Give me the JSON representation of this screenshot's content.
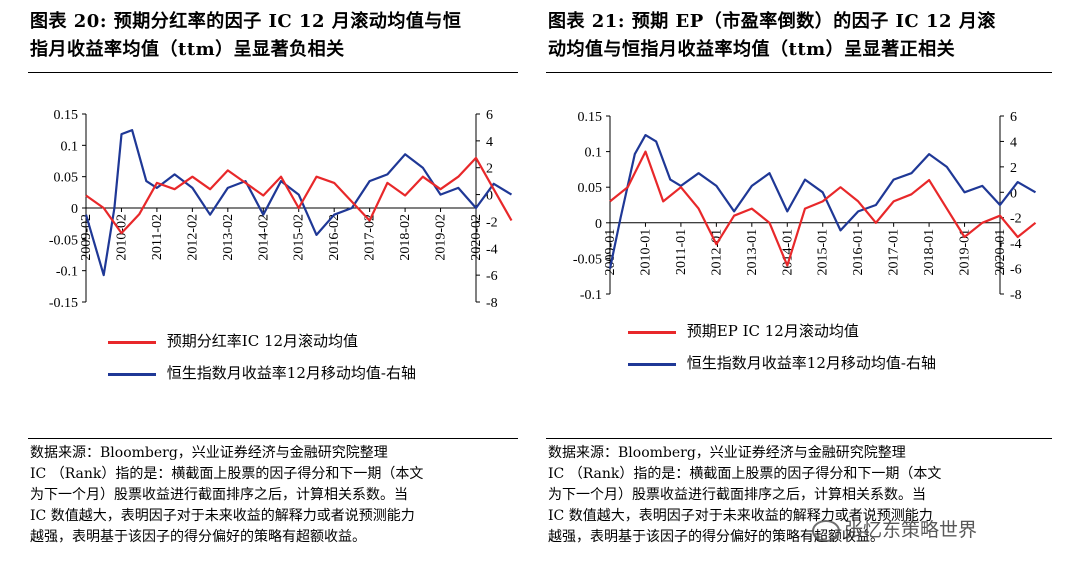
{
  "left": {
    "title_line1": "图表 20: 预期分红率的因子 IC 12 月滚动均值与恒",
    "title_line2": "指月收益率均值（ttm）呈显著负相关",
    "legend": [
      "预期分红率IC 12月滚动均值",
      "恒生指数月收益率12月移动均值-右轴"
    ],
    "source": "数据来源：Bloomberg，兴业证券经济与金融研究院整理",
    "notes": [
      "IC （Rank）指的是：横截面上股票的因子得分和下一期（本文",
      "为下一个月）股票收益进行截面排序之后，计算相关系数。当",
      "IC 数值越大，表明因子对于未来收益的解释力或者说预测能力",
      "越强，表明基于该因子的得分偏好的策略有超额收益。"
    ]
  },
  "right": {
    "title_line1": "图表 21: 预期 EP（市盈率倒数）的因子 IC 12 月滚",
    "title_line2": "动均值与恒指月收益率均值（ttm）呈显著正相关",
    "legend": [
      "预期EP IC 12月滚动均值",
      "恒生指数月收益率12月移动均值-右轴"
    ],
    "source": "数据来源：Bloomberg，兴业证券经济与金融研究院整理",
    "notes": [
      "IC （Rank）指的是：横截面上股票的因子得分和下一期（本文",
      "为下一个月）股票收益进行截面排序之后，计算相关系数。当",
      "IC 数值越大，表明因子对于未来收益的解释力或者说预测能力",
      "越强，表明基于该因子的得分偏好的策略有超额收益。"
    ]
  },
  "watermark": "张忆东策略世界",
  "colors": {
    "ic": "#e8282a",
    "hsi": "#1f3896"
  },
  "chart_data": [
    {
      "type": "line",
      "y_left": {
        "min": -0.15,
        "max": 0.15,
        "ticks": [
          "0.15",
          "0.1",
          "0.05",
          "0",
          "-0.05",
          "-0.1",
          "-0.15"
        ]
      },
      "y_right": {
        "min": -8,
        "max": 6,
        "ticks": [
          "6",
          "4",
          "2",
          "0",
          "-2",
          "-4",
          "-6",
          "-8"
        ]
      },
      "x_ticks": [
        "2009-02",
        "2010-02",
        "2011-02",
        "2012-02",
        "2013-02",
        "2014-02",
        "2015-02",
        "2016-02",
        "2017-02",
        "2018-02",
        "2019-02",
        "2020-02"
      ],
      "series": [
        {
          "name": "预期分红率IC 12月滚动均值",
          "axis": "left",
          "x": [
            0,
            0.5,
            1,
            1.5,
            2,
            2.5,
            3,
            3.5,
            4,
            4.5,
            5,
            5.5,
            6,
            6.5,
            7,
            7.5,
            8,
            8.5,
            9,
            9.5,
            10,
            10.5,
            11,
            11.5,
            12
          ],
          "values": [
            0.02,
            0.0,
            -0.04,
            -0.01,
            0.04,
            0.03,
            0.05,
            0.03,
            0.06,
            0.04,
            0.02,
            0.05,
            0.0,
            0.05,
            0.04,
            0.01,
            -0.02,
            0.04,
            0.02,
            0.05,
            0.03,
            0.05,
            0.08,
            0.03,
            -0.02
          ]
        },
        {
          "name": "恒生指数月收益率12月移动均值-右轴",
          "axis": "right",
          "x": [
            0,
            0.5,
            0.8,
            1,
            1.3,
            1.7,
            2,
            2.5,
            3,
            3.5,
            4,
            4.5,
            5,
            5.5,
            6,
            6.5,
            7,
            7.5,
            8,
            8.5,
            9,
            9.5,
            10,
            10.5,
            11,
            11.5,
            12
          ],
          "values": [
            -1.5,
            -6,
            -1,
            4.5,
            4.8,
            1,
            0.5,
            1.5,
            0.5,
            -1.5,
            0.5,
            1,
            -1.5,
            1,
            0,
            -3,
            -1.5,
            -1,
            1,
            1.5,
            3,
            2,
            0,
            0.5,
            -1,
            0.8,
            0
          ]
        }
      ]
    },
    {
      "type": "line",
      "y_left": {
        "min": -0.1,
        "max": 0.15,
        "ticks": [
          "0.15",
          "0.1",
          "0.05",
          "0",
          "-0.05",
          "-0.1"
        ]
      },
      "y_right": {
        "min": -8,
        "max": 6,
        "ticks": [
          "6",
          "4",
          "2",
          "0",
          "-2",
          "-4",
          "-6",
          "-8"
        ]
      },
      "x_ticks": [
        "2009-01",
        "2010-01",
        "2011-01",
        "2012-01",
        "2013-01",
        "2014-01",
        "2015-01",
        "2016-01",
        "2017-01",
        "2018-01",
        "2019-01",
        "2020-01"
      ],
      "series": [
        {
          "name": "预期EP IC 12月滚动均值",
          "axis": "left",
          "x": [
            0,
            0.5,
            1,
            1.5,
            2,
            2.5,
            3,
            3.5,
            4,
            4.5,
            5,
            5.5,
            6,
            6.5,
            7,
            7.5,
            8,
            8.5,
            9,
            9.5,
            10,
            10.5,
            11,
            11.5,
            12
          ],
          "values": [
            0.03,
            0.05,
            0.1,
            0.03,
            0.05,
            0.02,
            -0.03,
            0.01,
            0.02,
            0.0,
            -0.06,
            0.02,
            0.03,
            0.05,
            0.03,
            0.0,
            0.03,
            0.04,
            0.06,
            0.02,
            -0.02,
            0.0,
            0.01,
            -0.02,
            0.0
          ]
        },
        {
          "name": "恒生指数月收益率12月移动均值-右轴",
          "axis": "right",
          "x": [
            0,
            0.3,
            0.7,
            1,
            1.3,
            1.7,
            2,
            2.5,
            3,
            3.5,
            4,
            4.5,
            5,
            5.5,
            6,
            6.5,
            7,
            7.5,
            8,
            8.5,
            9,
            9.5,
            10,
            10.5,
            11,
            11.5,
            12
          ],
          "values": [
            -6,
            -2,
            3,
            4.5,
            4,
            1,
            0.5,
            1.5,
            0.5,
            -1.5,
            0.5,
            1.5,
            -1.5,
            1,
            0,
            -3,
            -1.5,
            -1,
            1,
            1.5,
            3,
            2,
            0,
            0.5,
            -1,
            0.8,
            0
          ]
        }
      ]
    }
  ]
}
